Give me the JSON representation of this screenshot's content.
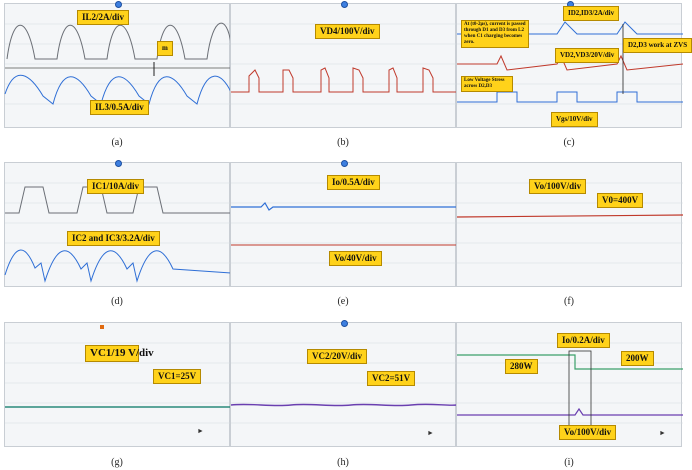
{
  "panels": [
    {
      "id": "a",
      "caption": "(a)",
      "labels": {
        "l1": "IL2/2A/div",
        "l2": "IL3/0.5A/div",
        "l3": "m"
      }
    },
    {
      "id": "b",
      "caption": "(b)",
      "labels": {
        "l1": "VD4/100V/div"
      }
    },
    {
      "id": "c",
      "caption": "(c)",
      "labels": {
        "l1": "ID2,ID3/2A/div",
        "l2": "At (t0-2μs), current is passed through D1 and D3 from L2 when C1 charging becomes zero.",
        "l3": "D2,D3 work at ZVS",
        "l4": "VD2,VD3/20V/div",
        "l5": "Low Voltage Stress across D2,D3",
        "l6": "Vgs/10V/div"
      }
    },
    {
      "id": "d",
      "caption": "(d)",
      "labels": {
        "l1": "IC1/10A/div",
        "l2": "IC2 and IC3/3.2A/div"
      }
    },
    {
      "id": "e",
      "caption": "(e)",
      "labels": {
        "l1": "Io/0.5A/div",
        "l2": "Vo/40V/div"
      }
    },
    {
      "id": "f",
      "caption": "(f)",
      "labels": {
        "l1": "Vo/100V/div",
        "l2": "V0=400V"
      }
    },
    {
      "id": "g",
      "caption": "(g)",
      "labels": {
        "l1": "VC1/19 V/div",
        "l2": "VC1=25V"
      }
    },
    {
      "id": "h",
      "caption": "(h)",
      "labels": {
        "l1": "VC2/20V/div",
        "l2": "VC2=51V"
      }
    },
    {
      "id": "i",
      "caption": "(i)",
      "labels": {
        "l1": "Io/0.2A/div",
        "l2": "280W",
        "l3": "200W",
        "l4": "Vo/100V/div"
      }
    }
  ],
  "colors": {
    "grid": "#d6dbe0",
    "blue": "#2f6fd6",
    "red": "#c0392b",
    "teal": "#2a8a7a",
    "purple": "#6a3fb0",
    "gray": "#6b6f76",
    "green": "#3aa06a"
  }
}
